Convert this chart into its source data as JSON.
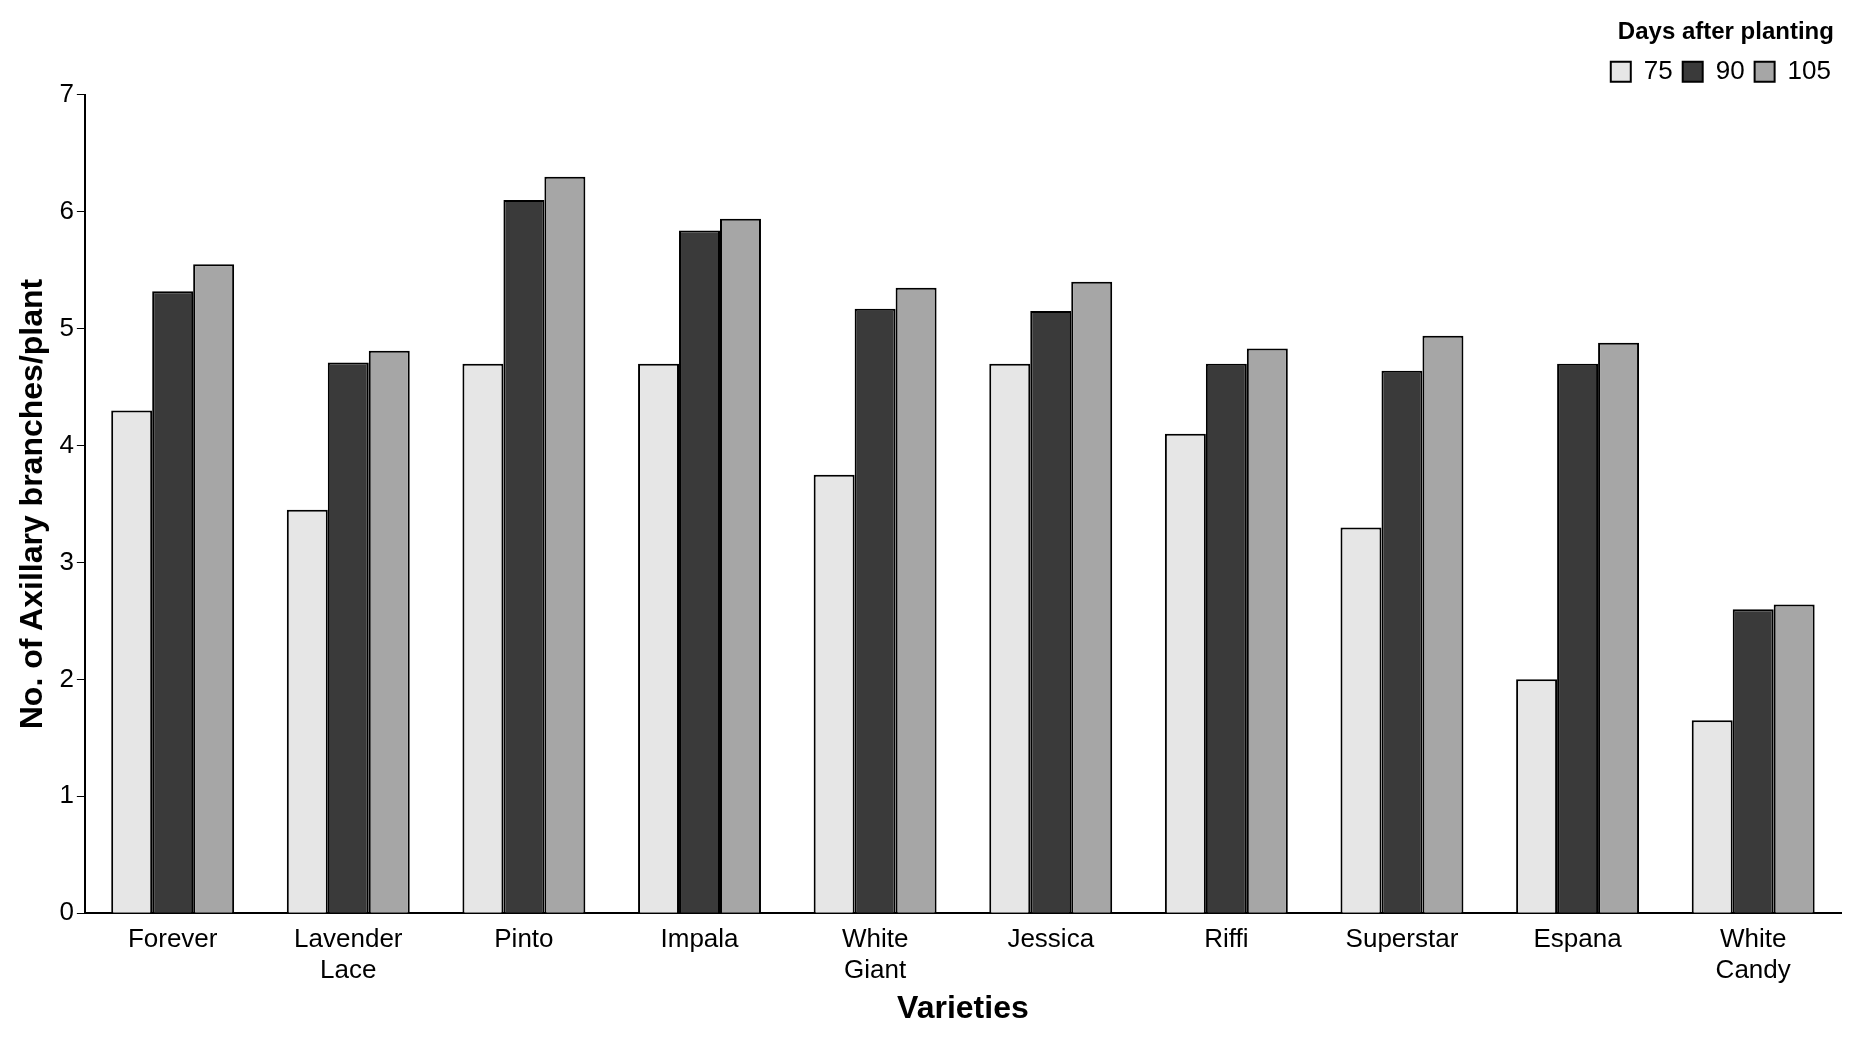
{
  "chart_data": {
    "type": "bar",
    "xlabel": "Varieties",
    "ylabel": "No. of Axillary branches/plant",
    "legend_title": "Days after planting",
    "categories": [
      "Forever",
      "Lavender Lace",
      "Pinto",
      "Impala",
      "White Giant",
      "Jessica",
      "Riffi",
      "Superstar",
      "Espana",
      "White Candy"
    ],
    "series": [
      {
        "name": "75",
        "color": "#e6e6e6",
        "values": [
          4.3,
          3.45,
          4.7,
          4.7,
          3.75,
          4.7,
          4.1,
          3.3,
          2.0,
          1.65
        ]
      },
      {
        "name": "90",
        "color": "#3a3a3a",
        "values": [
          5.32,
          4.71,
          6.1,
          5.84,
          5.17,
          5.15,
          4.7,
          4.64,
          4.7,
          2.6
        ]
      },
      {
        "name": "105",
        "color": "#a6a6a6",
        "values": [
          5.55,
          4.81,
          6.3,
          5.94,
          5.35,
          5.4,
          4.83,
          4.94,
          4.88,
          2.64
        ]
      }
    ],
    "ylim": [
      0,
      7
    ],
    "yticks": [
      0,
      1,
      2,
      3,
      4,
      5,
      6,
      7
    ],
    "grid": false,
    "legend": "top right"
  }
}
